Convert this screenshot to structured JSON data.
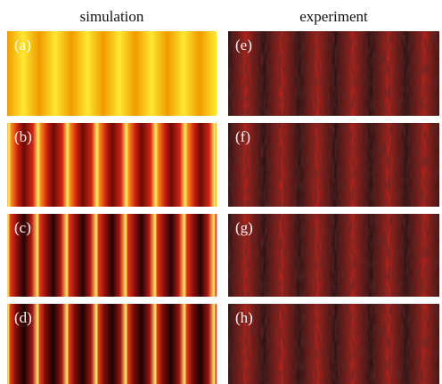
{
  "columns": [
    {
      "title": "simulation",
      "panels": [
        "(a)",
        "(b)",
        "(c)",
        "(d)"
      ]
    },
    {
      "title": "experiment",
      "panels": [
        "(e)",
        "(f)",
        "(g)",
        "(h)"
      ]
    }
  ]
}
